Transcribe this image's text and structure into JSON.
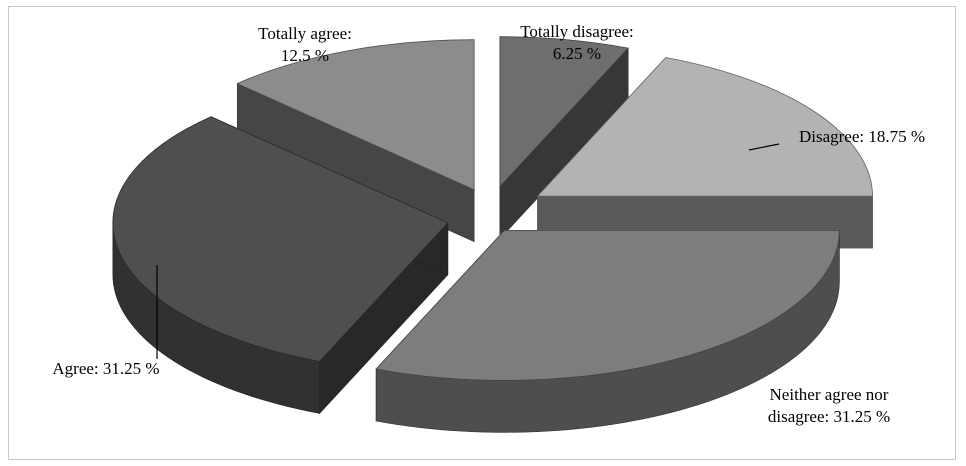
{
  "chart_data": {
    "type": "pie",
    "subtype": "3d-exploded",
    "slices": [
      {
        "label": "Totally disagree",
        "value": 6.25,
        "text": [
          "Totally disagree:",
          "6.25 %"
        ],
        "color": "#6e6e6e"
      },
      {
        "label": "Disagree",
        "value": 18.75,
        "text": [
          "Disagree: 18.75 %"
        ],
        "color": "#b3b3b3"
      },
      {
        "label": "Neither agree nor disagree",
        "value": 31.25,
        "text": [
          "Neither agree nor",
          "disagree: 31.25 %"
        ],
        "color": "#7d7d7d"
      },
      {
        "label": "Agree",
        "value": 31.25,
        "text": [
          "Agree: 31.25 %"
        ],
        "color": "#4f4f4f"
      },
      {
        "label": "Totally agree",
        "value": 12.5,
        "text": [
          "Totally agree:",
          "12.5 %"
        ],
        "color": "#8c8c8c"
      }
    ],
    "legend": "none"
  }
}
